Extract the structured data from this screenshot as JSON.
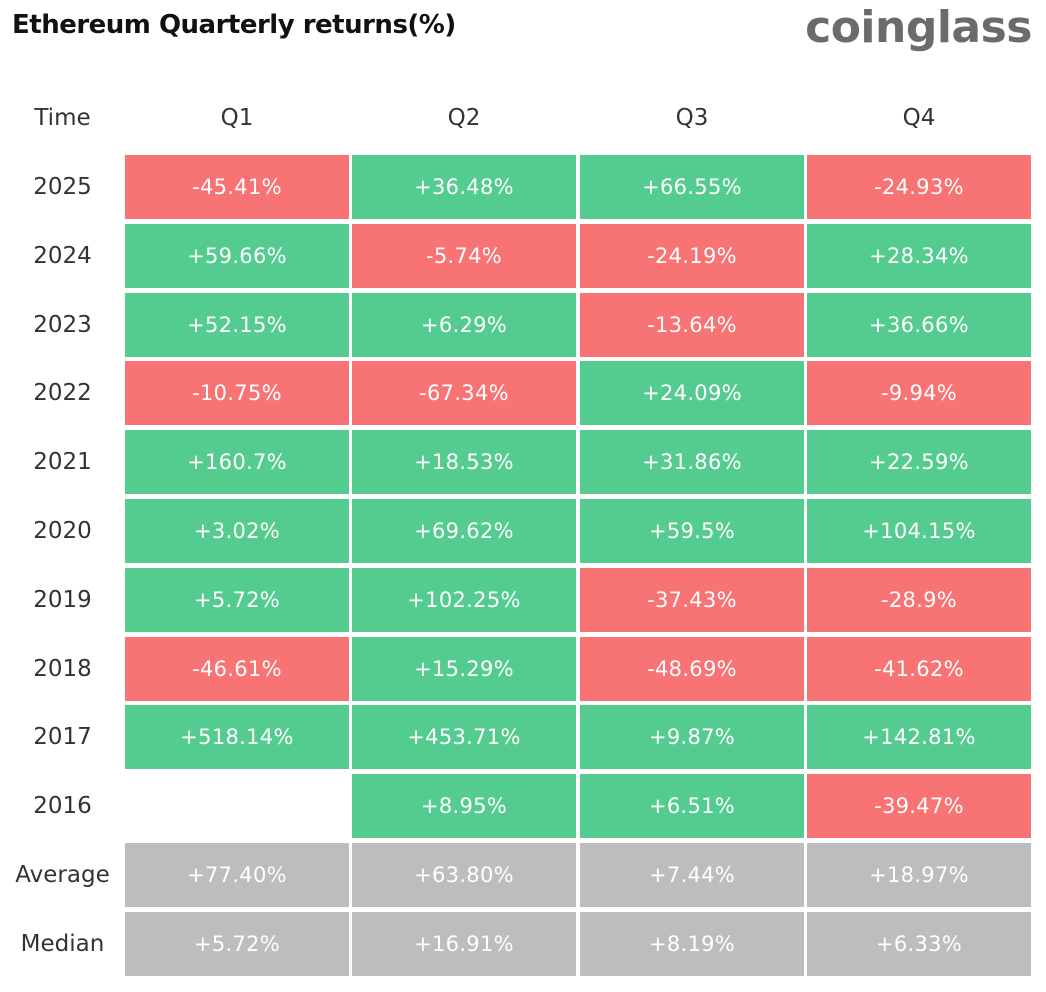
{
  "title": "Ethereum Quarterly returns(%)",
  "brand": "coinglass",
  "colors": {
    "positive": "#55cc8f",
    "negative": "#f87374",
    "summary": "#bdbdbd",
    "label_text": "#333333"
  },
  "chart_data": {
    "type": "table",
    "title": "Ethereum Quarterly returns(%)",
    "header_label": "Time",
    "columns": [
      "Q1",
      "Q2",
      "Q3",
      "Q4"
    ],
    "rows": [
      {
        "label": "2025",
        "cells": [
          "-45.41%",
          "+36.48%",
          "+66.55%",
          "-24.93%"
        ],
        "values": [
          -45.41,
          36.48,
          66.55,
          -24.93
        ]
      },
      {
        "label": "2024",
        "cells": [
          "+59.66%",
          "-5.74%",
          "-24.19%",
          "+28.34%"
        ],
        "values": [
          59.66,
          -5.74,
          -24.19,
          28.34
        ]
      },
      {
        "label": "2023",
        "cells": [
          "+52.15%",
          "+6.29%",
          "-13.64%",
          "+36.66%"
        ],
        "values": [
          52.15,
          6.29,
          -13.64,
          36.66
        ]
      },
      {
        "label": "2022",
        "cells": [
          "-10.75%",
          "-67.34%",
          "+24.09%",
          "-9.94%"
        ],
        "values": [
          -10.75,
          -67.34,
          24.09,
          -9.94
        ]
      },
      {
        "label": "2021",
        "cells": [
          "+160.7%",
          "+18.53%",
          "+31.86%",
          "+22.59%"
        ],
        "values": [
          160.7,
          18.53,
          31.86,
          22.59
        ]
      },
      {
        "label": "2020",
        "cells": [
          "+3.02%",
          "+69.62%",
          "+59.5%",
          "+104.15%"
        ],
        "values": [
          3.02,
          69.62,
          59.5,
          104.15
        ]
      },
      {
        "label": "2019",
        "cells": [
          "+5.72%",
          "+102.25%",
          "-37.43%",
          "-28.9%"
        ],
        "values": [
          5.72,
          102.25,
          -37.43,
          -28.9
        ]
      },
      {
        "label": "2018",
        "cells": [
          "-46.61%",
          "+15.29%",
          "-48.69%",
          "-41.62%"
        ],
        "values": [
          -46.61,
          15.29,
          -48.69,
          -41.62
        ]
      },
      {
        "label": "2017",
        "cells": [
          "+518.14%",
          "+453.71%",
          "+9.87%",
          "+142.81%"
        ],
        "values": [
          518.14,
          453.71,
          9.87,
          142.81
        ]
      },
      {
        "label": "2016",
        "cells": [
          null,
          "+8.95%",
          "+6.51%",
          "-39.47%"
        ],
        "values": [
          null,
          8.95,
          6.51,
          -39.47
        ]
      }
    ],
    "summary_rows": [
      {
        "label": "Average",
        "cells": [
          "+77.40%",
          "+63.80%",
          "+7.44%",
          "+18.97%"
        ],
        "values": [
          77.4,
          63.8,
          7.44,
          18.97
        ]
      },
      {
        "label": "Median",
        "cells": [
          "+5.72%",
          "+16.91%",
          "+8.19%",
          "+6.33%"
        ],
        "values": [
          5.72,
          16.91,
          8.19,
          6.33
        ]
      }
    ]
  }
}
